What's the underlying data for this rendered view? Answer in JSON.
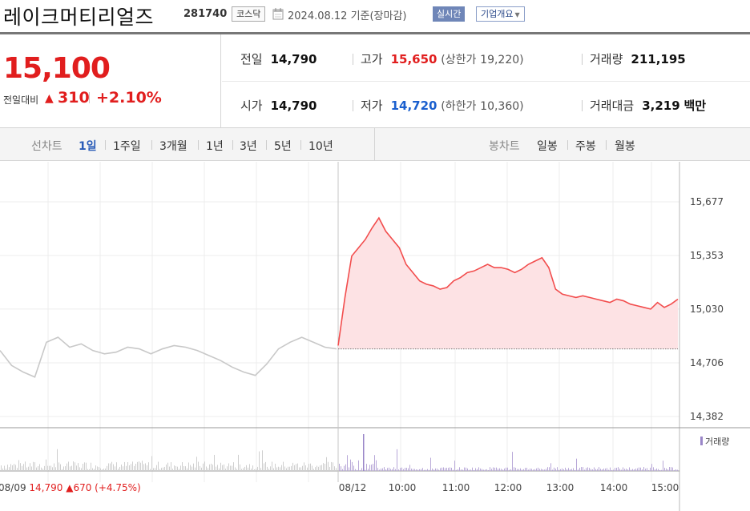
{
  "header": {
    "stock_name": "레이크머티리얼즈",
    "stock_code": "281740",
    "market": "코스닥",
    "date_text": "2024.08.12 기준(장마감)",
    "realtime_label": "실시간",
    "company_overview": "기업개요"
  },
  "price": {
    "current": "15,100",
    "change_label": "전일대비",
    "change_value": "310",
    "change_percent": "+2.10%",
    "color_up": "#e11e1e",
    "color_down": "#1a5fce"
  },
  "info": {
    "prev_close_label": "전일",
    "prev_close": "14,790",
    "high_label": "고가",
    "high": "15,650",
    "upper_limit_label": "(상한가",
    "upper_limit": "19,220",
    "upper_limit_close": ")",
    "volume_label": "거래량",
    "volume": "211,195",
    "open_label": "시가",
    "open": "14,790",
    "low_label": "저가",
    "low": "14,720",
    "lower_limit_label": "(하한가",
    "lower_limit": "10,360",
    "lower_limit_close": ")",
    "amount_label": "거래대금",
    "amount": "3,219",
    "amount_unit": "백만"
  },
  "period_bar": {
    "line_chart_label": "선차트",
    "periods": [
      "1일",
      "1주일",
      "3개월",
      "1년",
      "3년",
      "5년",
      "10년"
    ],
    "active_period": "1일",
    "candle_chart_label": "봉차트",
    "candles": [
      "일봉",
      "주봉",
      "월봉"
    ]
  },
  "chart_data": {
    "type": "line",
    "y_ticks": [
      "15,677",
      "15,353",
      "15,030",
      "14,706",
      "14,382"
    ],
    "ylim": [
      14382,
      15677
    ],
    "x_ticks": [
      "08/12",
      "10:00",
      "11:00",
      "12:00",
      "13:00",
      "14:00",
      "15:00"
    ],
    "volume_legend": "거래량",
    "prev_session": {
      "date": "08/09",
      "close": "14,790",
      "change": "670",
      "change_percent": "(+4.75%)",
      "color": "#c8c8c8",
      "values": [
        14780,
        14690,
        14650,
        14620,
        14830,
        14860,
        14800,
        14820,
        14780,
        14760,
        14770,
        14800,
        14790,
        14760,
        14790,
        14810,
        14800,
        14780,
        14750,
        14720,
        14680,
        14650,
        14630,
        14700,
        14790,
        14830,
        14860,
        14830,
        14800,
        14790
      ]
    },
    "today_session": {
      "date": "08/12",
      "prev_close": 14790,
      "color": "#f24d4d",
      "fill": "#fde2e4",
      "values": [
        14810,
        15100,
        15350,
        15400,
        15450,
        15520,
        15580,
        15500,
        15450,
        15400,
        15300,
        15250,
        15200,
        15180,
        15170,
        15150,
        15160,
        15200,
        15220,
        15250,
        15260,
        15280,
        15300,
        15280,
        15280,
        15270,
        15250,
        15270,
        15300,
        15320,
        15340,
        15280,
        15150,
        15120,
        15110,
        15100,
        15110,
        15100,
        15090,
        15080,
        15070,
        15090,
        15080,
        15060,
        15050,
        15040,
        15030,
        15070,
        15040,
        15060,
        15090
      ]
    },
    "volume_color_prev": "#cfcfcf",
    "volume_color_today": "#b8a8d8"
  }
}
